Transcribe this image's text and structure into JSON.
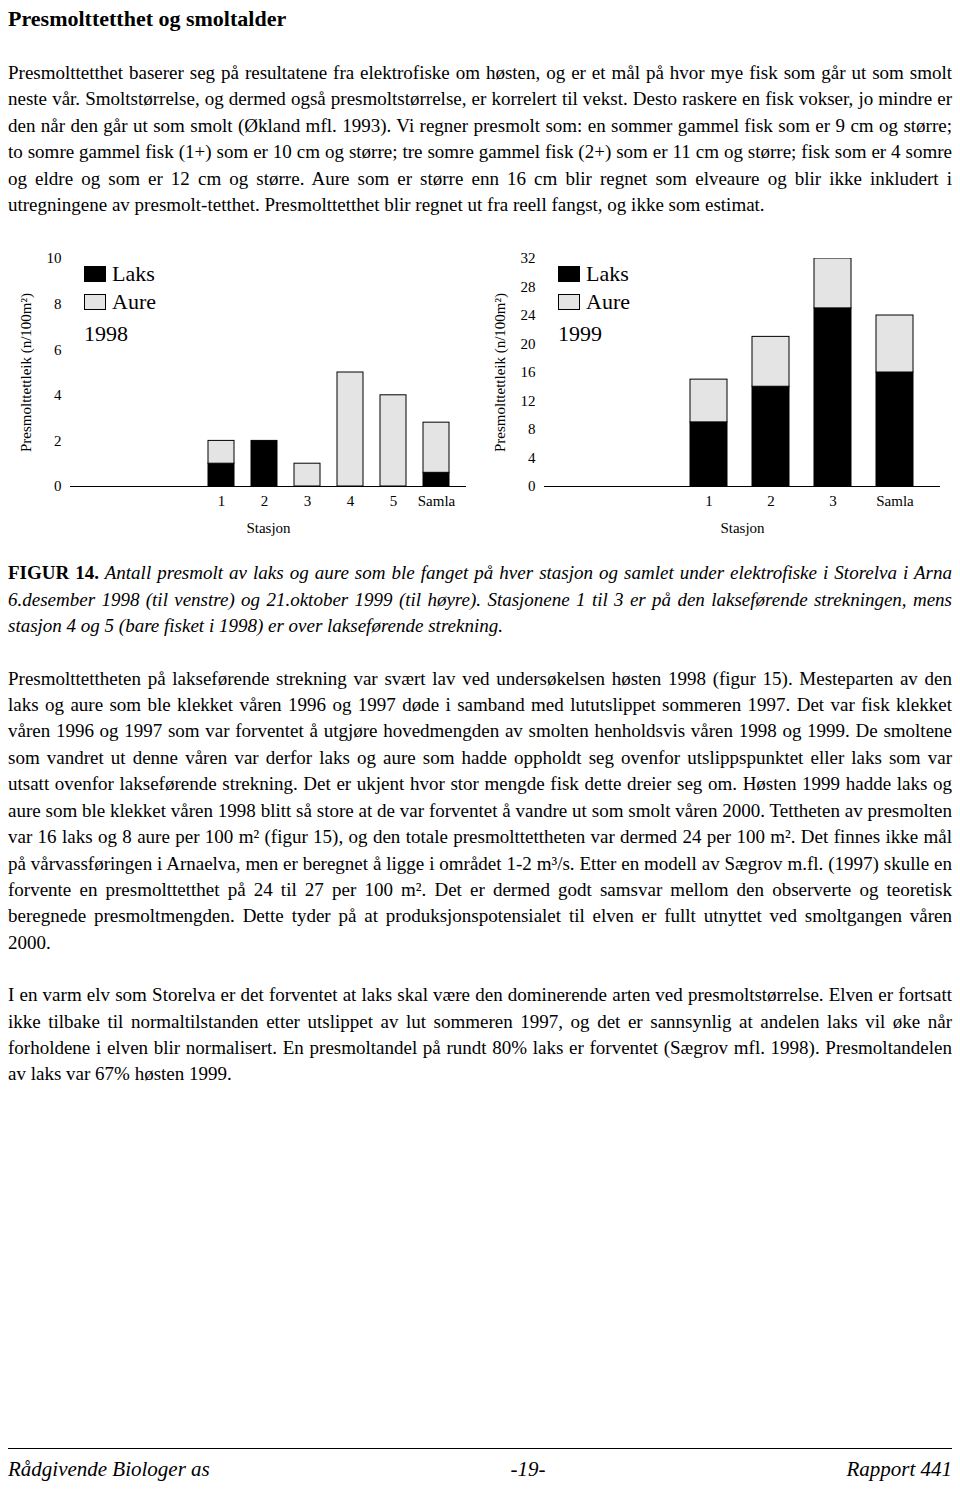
{
  "heading": "Presmolttetthet og smoltalder",
  "paragraphs_before": [
    "Presmolttetthet baserer seg på resultatene fra elektrofiske om høsten, og er et mål på hvor mye fisk som går ut som smolt neste vår. Smoltstørrelse, og dermed også presmoltstørrelse, er korrelert til vekst. Desto raskere en fisk vokser, jo mindre er den når den går ut som smolt (Økland mfl. 1993). Vi regner presmolt som: en sommer gammel fisk som er 9 cm og større; to somre gammel fisk (1+) som er 10 cm og større; tre somre gammel fisk (2+) som er 11 cm og større; fisk som er 4 somre og eldre og som er 12 cm og større. Aure som er større enn 16 cm blir regnet som elveaure og blir ikke inkludert i utregningene av presmolt-tetthet. Presmolttetthet blir regnet ut fra reell fangst, og ikke som estimat."
  ],
  "chart_data": [
    {
      "type": "bar",
      "title": "1998",
      "stacked": true,
      "legend": "top-left",
      "x_label": "Stasjon",
      "y_label": "Presmolttettleik (n/100m²)",
      "categories": [
        "1",
        "2",
        "3",
        "4",
        "5",
        "Samla"
      ],
      "series": [
        {
          "name": "Laks",
          "color": "#000000",
          "values": [
            1,
            2,
            0,
            0,
            0,
            0.6
          ]
        },
        {
          "name": "Aure",
          "color": "#e4e4e4",
          "values": [
            1,
            0,
            1,
            5,
            4,
            2.2
          ]
        }
      ],
      "ylim": [
        0,
        10
      ],
      "yticks": [
        0,
        2,
        4,
        6,
        8,
        10
      ]
    },
    {
      "type": "bar",
      "title": "1999",
      "stacked": true,
      "legend": "top-left",
      "x_label": "Stasjon",
      "y_label": "Presmolttettleik (n/100m²)",
      "categories": [
        "1",
        "2",
        "3",
        "Samla"
      ],
      "series": [
        {
          "name": "Laks",
          "color": "#000000",
          "values": [
            9,
            14,
            25,
            16
          ]
        },
        {
          "name": "Aure",
          "color": "#e4e4e4",
          "values": [
            6,
            7,
            7,
            8
          ]
        }
      ],
      "ylim": [
        0,
        32
      ],
      "yticks": [
        0,
        4,
        8,
        12,
        16,
        20,
        24,
        28,
        32
      ]
    }
  ],
  "caption": {
    "label": "FIGUR 14.",
    "text": "Antall presmolt av laks og aure som ble fanget på hver stasjon og samlet under elektrofiske i Storelva i Arna 6.desember 1998 (til venstre) og 21.oktober 1999 (til høyre). Stasjonene 1 til 3 er på den lakseførende strekningen, mens stasjon 4 og 5 (bare fisket i 1998) er over lakseførende strekning."
  },
  "paragraphs_after": [
    "Presmolttettheten på lakseførende strekning var svært lav ved undersøkelsen høsten 1998 (figur 15). Mesteparten av den laks og aure som ble klekket våren 1996 og 1997 døde i samband med lututslippet sommeren 1997. Det var fisk klekket våren 1996 og 1997 som var forventet å utgjøre hovedmengden av smolten henholdsvis våren 1998 og 1999. De smoltene som vandret ut denne våren var derfor laks og aure som hadde oppholdt seg ovenfor utslippspunktet eller laks som var utsatt ovenfor lakseførende strekning. Det er ukjent hvor stor mengde fisk dette dreier seg om. Høsten 1999 hadde laks og aure som ble klekket våren 1998 blitt så store at de var forventet å vandre ut som smolt våren 2000. Tettheten av presmolten var 16 laks og 8 aure per 100 m² (figur 15), og den totale presmolttettheten var dermed 24 per 100 m². Det finnes ikke mål på vårvassføringen i Arnaelva, men er beregnet å ligge i området 1-2 m³/s. Etter en modell av Sægrov m.fl. (1997) skulle en forvente en presmolttetthet på 24 til 27 per 100 m². Det er dermed godt samsvar mellom den observerte og teoretisk beregnede presmoltmengden. Dette tyder på at produksjonspotensialet til elven er fullt utnyttet ved smoltgangen våren 2000.",
    "I en varm elv som Storelva er det forventet at laks skal være den dominerende arten ved presmoltstørrelse. Elven er fortsatt ikke tilbake til normaltilstanden etter utslippet av lut sommeren 1997, og det er sannsynlig at andelen laks vil øke når forholdene i elven blir normalisert. En presmoltandel på rundt 80% laks er forventet (Sægrov mfl. 1998). Presmoltandelen av laks var 67% høsten 1999."
  ],
  "footer": {
    "left": "Rådgivende Biologer as",
    "center": "-19-",
    "right": "Rapport 441"
  }
}
